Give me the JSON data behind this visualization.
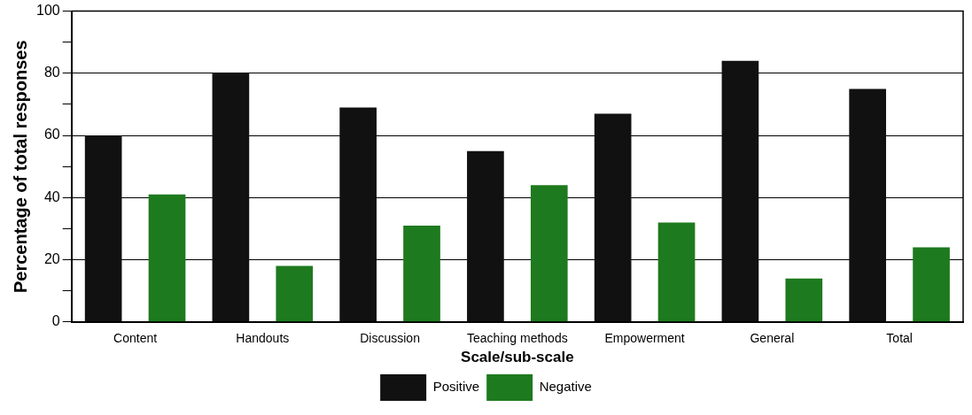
{
  "chart_data": {
    "type": "bar",
    "xlabel": "Scale/sub-scale",
    "ylabel": "Percentage of total responses",
    "categories": [
      "Content",
      "Handouts",
      "Discussion",
      "Teaching methods",
      "Empowerment",
      "General",
      "Total"
    ],
    "series": [
      {
        "name": "Positive",
        "color": "#111111",
        "values": [
          60,
          80,
          69,
          55,
          67,
          84,
          75
        ]
      },
      {
        "name": "Negative",
        "color": "#1e7a1e",
        "values": [
          41,
          18,
          31,
          44,
          32,
          14,
          24
        ]
      }
    ],
    "ylim": [
      0,
      100
    ],
    "yticks": [
      0,
      {
        "value": 10,
        "label": null
      },
      20,
      {
        "value": 30,
        "label": null
      },
      40,
      {
        "value": 50,
        "label": null
      },
      60,
      {
        "value": 70,
        "label": null
      },
      80,
      {
        "value": 90,
        "label": null
      },
      100
    ],
    "grid": "y",
    "legend": "bottom"
  }
}
